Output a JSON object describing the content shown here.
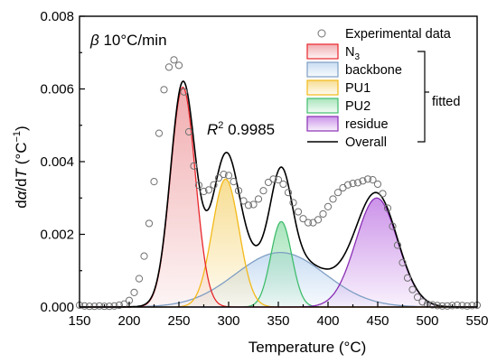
{
  "chart_data": {
    "type": "line",
    "xlabel": "Temperature (°C)",
    "ylabel_parts": {
      "a": "d",
      "b": "α",
      "c": "/d",
      "d": "T",
      "e": " (°C",
      "f": "−1",
      "g": ")"
    },
    "xlim": [
      150,
      550
    ],
    "ylim": [
      0,
      0.008
    ],
    "x_ticks": [
      "150",
      "200",
      "250",
      "300",
      "350",
      "400",
      "450",
      "500",
      "550"
    ],
    "y_ticks": [
      "0.000",
      "0.002",
      "0.004",
      "0.006",
      "0.008"
    ],
    "annotations": {
      "heating_rate": {
        "sym": "β",
        "text": " 10°C/min"
      },
      "r2": {
        "sym": "R",
        "sup": "2",
        "text": " 0.9985"
      }
    },
    "legend_group_label": "fitted",
    "legend": [
      {
        "key": "experimental",
        "label": "Experimental data",
        "marker": "circle"
      },
      {
        "key": "n3",
        "label": "N",
        "sub": "3"
      },
      {
        "key": "backbone",
        "label": "backbone"
      },
      {
        "key": "pu1",
        "label": "PU1"
      },
      {
        "key": "pu2",
        "label": "PU2"
      },
      {
        "key": "residue",
        "label": "residue"
      },
      {
        "key": "overall",
        "label": "Overall",
        "marker": "line"
      }
    ],
    "components": [
      {
        "key": "n3",
        "center": 254,
        "height": 0.00605,
        "sigma": 12.5,
        "stroke": "#e8262b",
        "fill": "#f0a8ab"
      },
      {
        "key": "backbone",
        "center": 352,
        "height": 0.0015,
        "sigma": 45,
        "stroke": "#7f9fc4",
        "fill": "#c6dbf2"
      },
      {
        "key": "pu1",
        "center": 297,
        "height": 0.00352,
        "sigma": 13.5,
        "stroke": "#f3b918",
        "fill": "#f7dc8d"
      },
      {
        "key": "pu2",
        "center": 353,
        "height": 0.00235,
        "sigma": 10.5,
        "stroke": "#3fbd6c",
        "fill": "#a3e3b8"
      },
      {
        "key": "residue",
        "center": 449,
        "height": 0.003,
        "sigma": 21,
        "stroke": "#8a2fb5",
        "fill": "#c98de8"
      }
    ],
    "experimental": {
      "x": [
        150,
        155,
        160,
        165,
        170,
        175,
        180,
        185,
        190,
        195,
        200,
        205,
        210,
        215,
        220,
        225,
        230,
        235,
        240,
        245,
        250,
        255,
        260,
        265,
        270,
        275,
        280,
        285,
        290,
        295,
        300,
        305,
        310,
        315,
        320,
        325,
        330,
        335,
        340,
        345,
        350,
        355,
        360,
        365,
        370,
        375,
        380,
        385,
        390,
        395,
        400,
        405,
        410,
        415,
        420,
        425,
        430,
        435,
        440,
        445,
        450,
        455,
        460,
        465,
        470,
        475,
        480,
        485,
        490,
        495,
        500,
        505,
        510,
        515,
        520,
        525,
        530,
        535,
        540,
        545,
        550
      ],
      "y": [
        5e-05,
        3e-05,
        2e-05,
        2e-05,
        3e-05,
        2e-05,
        2e-05,
        3e-05,
        5e-05,
        8e-05,
        0.00018,
        0.0004,
        0.00078,
        0.0014,
        0.0023,
        0.00345,
        0.00478,
        0.00598,
        0.0066,
        0.0068,
        0.00665,
        0.00592,
        0.00482,
        0.00388,
        0.00335,
        0.00318,
        0.00322,
        0.00336,
        0.00355,
        0.00365,
        0.00362,
        0.00345,
        0.0032,
        0.00292,
        0.0028,
        0.00282,
        0.00297,
        0.0032,
        0.00343,
        0.00352,
        0.0035,
        0.00338,
        0.00315,
        0.00287,
        0.00262,
        0.00243,
        0.00232,
        0.00232,
        0.0024,
        0.00256,
        0.00276,
        0.00297,
        0.00315,
        0.00328,
        0.00336,
        0.0034,
        0.00342,
        0.00347,
        0.00352,
        0.0035,
        0.00338,
        0.00312,
        0.00272,
        0.00222,
        0.0017,
        0.00122,
        0.0008,
        0.00048,
        0.00027,
        0.00014,
        8e-05,
        6e-05,
        4e-05,
        3e-05,
        3e-05,
        4e-05,
        5e-05,
        4e-05,
        3e-05,
        4e-05,
        5e-05
      ]
    }
  }
}
